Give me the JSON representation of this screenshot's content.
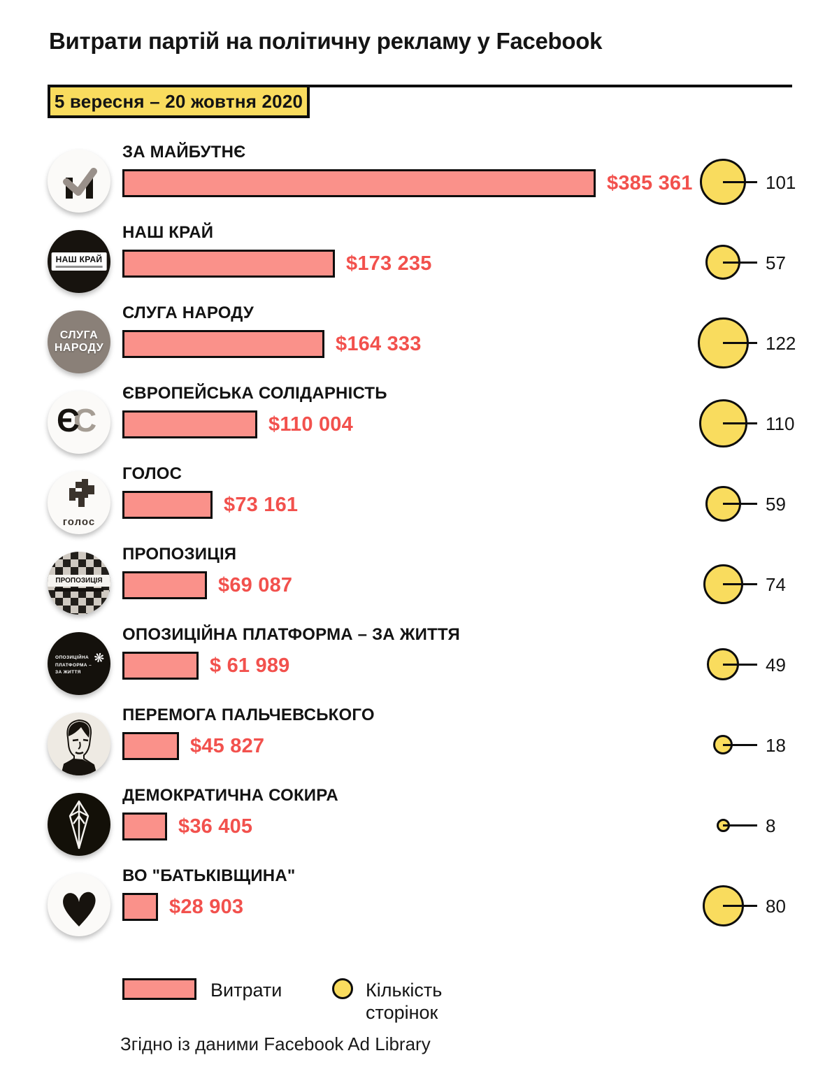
{
  "title": "Витрати партій на політичну рекламу у Facebook",
  "period": "5 вересня – 20 жовтня 2020",
  "legend": {
    "spend": "Витрати",
    "pages": "Кількість сторінок"
  },
  "source": "Згідно із даними Facebook Ad Library",
  "colors": {
    "bar_fill": "#FA918A",
    "bar_border": "#0D0D0D",
    "value_text": "#F2514D",
    "circle_fill": "#F9DC5E",
    "badge_fill": "#F9DC5E",
    "text": "#141414"
  },
  "chart_data": {
    "type": "bar",
    "orientation": "horizontal",
    "title": "Витрати партій на політичну рекламу у Facebook",
    "subtitle": "5 вересня – 20 жовтня 2020",
    "categories": [
      "ЗА МАЙБУТНЄ",
      "НАШ КРАЙ",
      "СЛУГА НАРОДУ",
      "ЄВРОПЕЙСЬКА СОЛІДАРНІСТЬ",
      "ГОЛОС",
      "ПРОПОЗИЦІЯ",
      "ОПОЗИЦІЙНА ПЛАТФОРМА – ЗА ЖИТТЯ",
      "ПЕРЕМОГА ПАЛЬЧЕВСЬКОГО",
      "ДЕМОКРАТИЧНА СОКИРА",
      "ВО \"БАТЬКІВЩИНА\""
    ],
    "series": [
      {
        "name": "Витрати",
        "unit": "USD",
        "values": [
          385361,
          173235,
          164333,
          110004,
          73161,
          69087,
          61989,
          45827,
          36405,
          28903
        ],
        "labels": [
          "$385 361",
          "$173 235",
          "$164 333",
          "$110 004",
          "$73 161",
          "$69 087",
          "$ 61 989",
          "$45 827",
          "$36 405",
          "$28 903"
        ]
      },
      {
        "name": "Кількість сторінок",
        "values": [
          101,
          57,
          122,
          110,
          59,
          74,
          49,
          18,
          8,
          80
        ]
      }
    ],
    "legend_position": "bottom",
    "grid": false,
    "source": "Згідно із даними Facebook Ad Library"
  },
  "logos": [
    {
      "id": "za-maibutne",
      "style": "m-check"
    },
    {
      "id": "nash-krai",
      "style": "label-box",
      "text": "НАШ КРАЙ"
    },
    {
      "id": "sluha-narodu",
      "style": "stacked-text",
      "line1": "СЛУГА",
      "line2": "НАРОДУ"
    },
    {
      "id": "yes",
      "style": "es-letters",
      "letter1": "Є",
      "letter2": "С"
    },
    {
      "id": "holos",
      "style": "pixel-mark",
      "text": "голос"
    },
    {
      "id": "propozytsiia",
      "style": "mosaic-band",
      "text": "ПРОПОЗИЦІЯ"
    },
    {
      "id": "opzh",
      "style": "text-emblem",
      "line1": "ОПОЗИЦІЙНА",
      "line2": "ПЛАТФОРМА –",
      "line3": "ЗА ЖИТТЯ"
    },
    {
      "id": "palchevskyi",
      "style": "portrait"
    },
    {
      "id": "sokyra",
      "style": "axe-emblem"
    },
    {
      "id": "batkivshchyna",
      "style": "heart"
    }
  ]
}
